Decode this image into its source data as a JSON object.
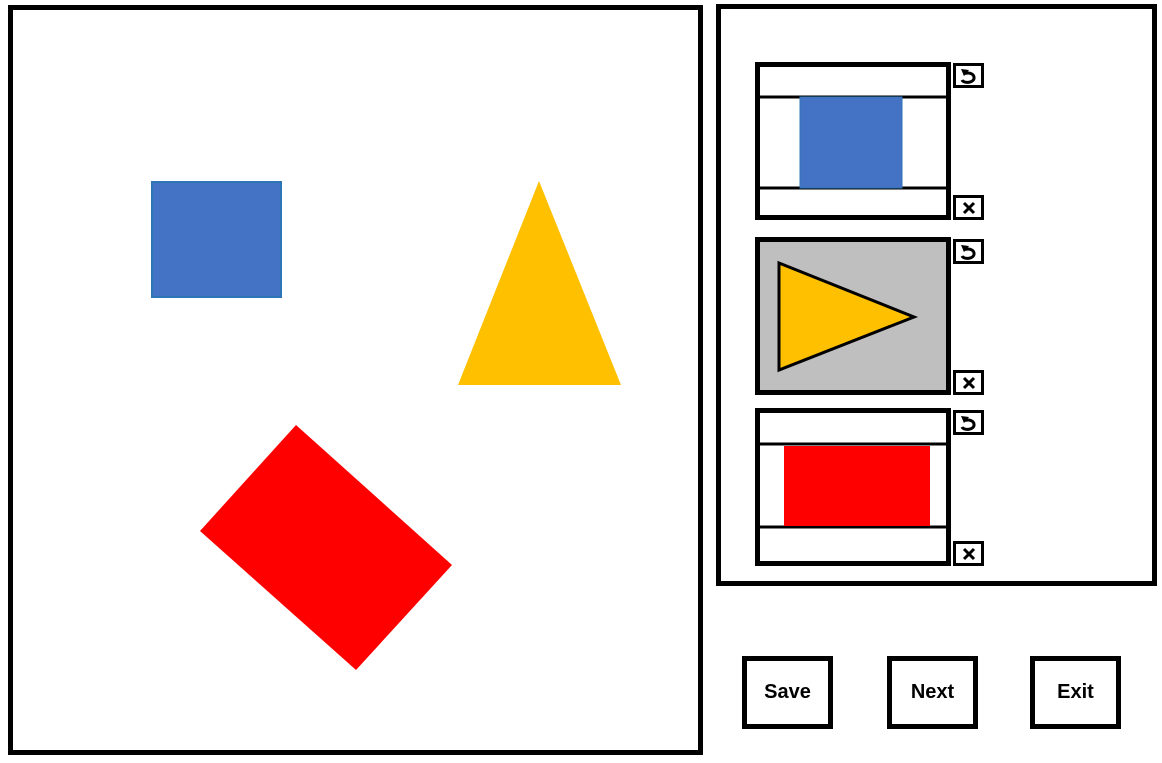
{
  "canvas": {
    "shapes": [
      {
        "name": "blue-square",
        "kind": "square",
        "color": "#4472C4",
        "outline": "#2E75B6"
      },
      {
        "name": "yellow-triangle",
        "kind": "triangle",
        "color": "#FFC000"
      },
      {
        "name": "red-rectangle",
        "kind": "rectangle",
        "color": "#FF0000"
      }
    ]
  },
  "thumbnails": [
    {
      "shape": "square",
      "color": "#4472C4",
      "background": "#FFFFFF",
      "selected": false,
      "rotate_icon": "rotate-icon",
      "delete_icon": "x"
    },
    {
      "shape": "triangle",
      "color": "#FFC000",
      "background": "#BFBFBF",
      "selected": true,
      "rotate_icon": "rotate-icon",
      "delete_icon": "x"
    },
    {
      "shape": "rectangle",
      "color": "#FF0000",
      "background": "#FFFFFF",
      "selected": false,
      "rotate_icon": "rotate-icon",
      "delete_icon": "x"
    }
  ],
  "buttons": {
    "save_label": "Save",
    "next_label": "Next",
    "exit_label": "Exit"
  }
}
